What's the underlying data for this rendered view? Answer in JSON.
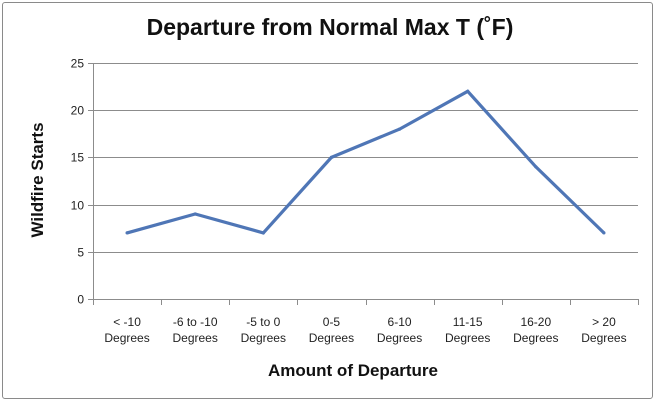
{
  "chart_data": {
    "type": "line",
    "title": "Departure from Normal Max T (˚F)",
    "xlabel": "Amount of Departure",
    "ylabel": "Wildfire Starts",
    "categories": [
      [
        "< -10",
        "Degrees"
      ],
      [
        "-6 to -10",
        "Degrees"
      ],
      [
        "-5 to 0",
        "Degrees"
      ],
      [
        "0-5",
        "Degrees"
      ],
      [
        "6-10",
        "Degrees"
      ],
      [
        "11-15",
        "Degrees"
      ],
      [
        "16-20",
        "Degrees"
      ],
      [
        "> 20",
        "Degrees"
      ]
    ],
    "series": [
      {
        "values": [
          7,
          9,
          7,
          15,
          18,
          22,
          14,
          7
        ]
      }
    ],
    "ylim": [
      0,
      25
    ],
    "yticks": [
      0,
      5,
      10,
      15,
      20,
      25
    ],
    "grid": true,
    "legend": "none",
    "colors": {
      "line": "#4f76b6",
      "grid": "#8c8c8c",
      "axis": "#8c8c8c"
    }
  }
}
